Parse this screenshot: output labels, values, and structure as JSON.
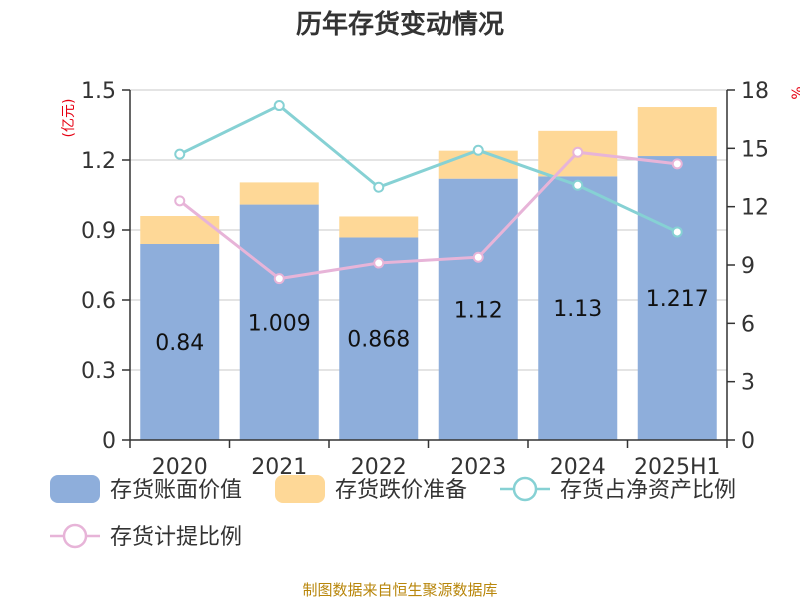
{
  "chart_data": {
    "type": "bar",
    "title": "历年存货变动情况",
    "categories": [
      "2020",
      "2021",
      "2022",
      "2023",
      "2024",
      "2025H1"
    ],
    "left_axis": {
      "unit": "(亿元)",
      "ylim": [
        0,
        1.5
      ],
      "ticks": [
        "0",
        "0.3",
        "0.6",
        "0.9",
        "1.2",
        "1.5"
      ]
    },
    "right_axis": {
      "unit": "%",
      "ylim": [
        0,
        18
      ],
      "ticks": [
        "0",
        "3",
        "6",
        "9",
        "12",
        "15",
        "18"
      ]
    },
    "series": [
      {
        "name": "存货账面价值",
        "kind": "bar",
        "axis": "left",
        "color": "#8eaedb",
        "values": [
          0.84,
          1.009,
          0.868,
          1.12,
          1.13,
          1.217
        ],
        "labels": [
          "0.84",
          "1.009",
          "0.868",
          "1.12",
          "1.13",
          "1.217"
        ]
      },
      {
        "name": "存货跌价准备",
        "kind": "bar",
        "axis": "left",
        "color": "#fed897",
        "values": [
          0.12,
          0.095,
          0.09,
          0.12,
          0.195,
          0.21
        ]
      },
      {
        "name": "存货占净资产比例",
        "kind": "line",
        "axis": "right",
        "color": "#86d1d4",
        "values": [
          14.7,
          17.2,
          13.0,
          14.9,
          13.1,
          10.7
        ]
      },
      {
        "name": "存货计提比例",
        "kind": "line",
        "axis": "right",
        "color": "#e7b4d8",
        "values": [
          12.3,
          8.3,
          9.1,
          9.4,
          14.8,
          14.2
        ]
      }
    ],
    "grid": true,
    "legend": "bottom"
  },
  "source": "制图数据来自恒生聚源数据库"
}
